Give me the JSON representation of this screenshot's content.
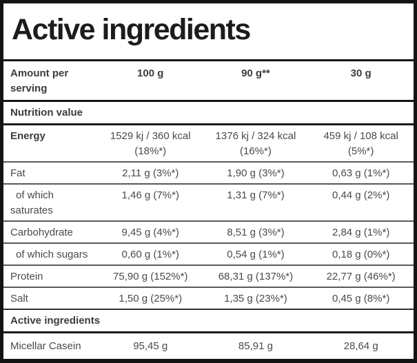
{
  "title": "Active ingredients",
  "colors": {
    "border": "#141414",
    "row_separator": "#585858",
    "title_text": "#1c1c1c",
    "body_text": "#4a4a4a"
  },
  "table": {
    "header": {
      "label": "Amount per\nserving",
      "columns": [
        "100 g",
        "90 g**",
        "30 g"
      ]
    },
    "section_nutrition": "Nutrition value",
    "rows": [
      {
        "label": "Energy",
        "values": [
          "1529 kj / 360 kcal\n(18%*)",
          "1376 kj / 324 kcal\n(16%*)",
          "459 kj / 108 kcal\n(5%*)"
        ]
      },
      {
        "label": "Fat",
        "values": [
          "2,11 g (3%*)",
          "1,90 g (3%*)",
          "0,63 g (1%*)"
        ]
      },
      {
        "label": "of which\nsaturates",
        "values": [
          "1,46 g (7%*)",
          "1,31 g (7%*)",
          "0,44 g (2%*)"
        ]
      },
      {
        "label": "Carbohydrate",
        "values": [
          "9,45 g (4%*)",
          "8,51 g (3%*)",
          "2,84 g (1%*)"
        ]
      },
      {
        "label": "of which sugars",
        "values": [
          "0,60 g (1%*)",
          "0,54 g (1%*)",
          "0,18 g (0%*)"
        ]
      },
      {
        "label": "Protein",
        "values": [
          "75,90 g (152%*)",
          "68,31 g (137%*)",
          "22,77 g (46%*)"
        ]
      },
      {
        "label": "Salt",
        "values": [
          "1,50 g (25%*)",
          "1,35 g (23%*)",
          "0,45 g (8%*)"
        ]
      }
    ],
    "section_active": "Active ingredients",
    "active_rows": [
      {
        "label": "Micellar Casein",
        "values": [
          "95,45 g",
          "85,91 g",
          "28,64 g"
        ]
      }
    ]
  }
}
